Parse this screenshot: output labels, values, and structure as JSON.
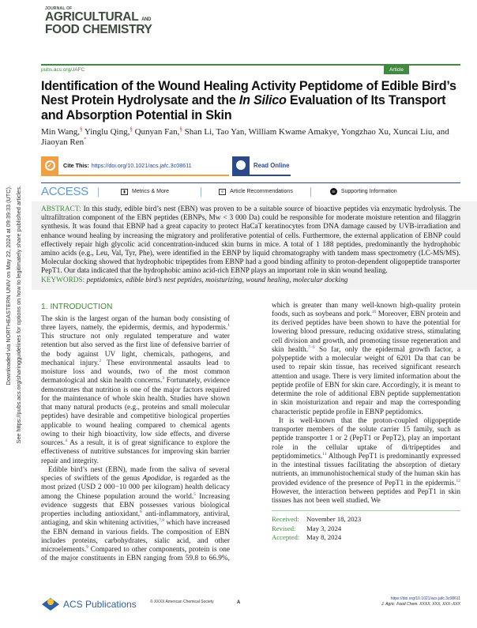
{
  "side_notice": {
    "line1": "Downloaded via NORTHEASTERN UNIV on May 22, 2024 at 09:39:33 (UTC).",
    "line2": "See https://pubs.acs.org/sharingguidelines for options on how to legitimately share published articles."
  },
  "journal": {
    "small": "JOURNAL OF",
    "line1": "AGRICULTURAL",
    "and": "AND",
    "line2": "FOOD CHEMISTRY"
  },
  "header": {
    "url": "pubs.acs.org/JAFC",
    "badge": "Article"
  },
  "title_part1": "Identification of the Wound Healing Activity Peptidome of Edible Bird’s Nest Protein Hydrolysate and the ",
  "title_italic": "In Silico",
  "title_part2": " Evaluation of Its Transport and Absorption Potential in Skin",
  "authors": [
    {
      "name": "Min Wang,",
      "sup": "§"
    },
    {
      "name": " Yinglu Qing,",
      "sup": "§"
    },
    {
      "name": " Qunyan Fan,",
      "sup": "§"
    },
    {
      "name": " Shan Li, Tao Yan, William Kwame Amakye, Yongzhao Xu, Xuncai Liu, and Jiaoyan Ren",
      "sup": "*"
    }
  ],
  "cite": {
    "label": "Cite This:",
    "doi": "https://doi.org/10.1021/acs.jafc.3c08611"
  },
  "read_online": "Read Online",
  "access": {
    "label": "ACCESS",
    "metrics": "Metrics & More",
    "recommendations": "Article Recommendations",
    "supporting": "Supporting Information",
    "si_badge": "SI"
  },
  "abstract": {
    "label": "ABSTRACT:",
    "text": " In this study, edible bird’s nest (EBN) was proven to be a suitable source of bioactive peptides via enzymatic hydrolysis. The ultrafiltration component of the EBN peptides (EBNPs, Mw < 3 000 Da) could be responsible for moderate moisture retention and filaggrin synthesis. It was found that EBNP had a great capacity to protect HaCaT keratinocytes from DNA damage caused by UVB-irradiation and enhance wound healing by increasing the migratory and proliferative potential of cells. Furthermore, the external application of EBNP could effectively repair high glycolic acid concentration-induced skin burns in mice. A total of 1 188 peptides, predominantly the hydrophobic amino acids (e.g., Leu, Val, Tyr, Phe), were identified in the EBNP by liquid chromatography with tandem mass spectrometry (LC-MS/MS). Molecular docking showed that hydrophobic tripeptides from EBNP had a good binding affinity to proton-dependent oligopeptide transporter PepT1. Our data indicated that the hydrophobic amino acid-rich EBNP plays an important role in skin wound healing."
  },
  "keywords": {
    "label": "KEYWORDS:",
    "text": " peptidomics, edible bird’s nest peptides, moisturizing, wound healing, molecular docking"
  },
  "intro": {
    "heading": "1. INTRODUCTION",
    "p1": [
      {
        "t": "The skin is the largest organ of the human body consisting of three layers, namely, the epidermis, dermis, and hypodermis.",
        "s": "1"
      },
      {
        "t": " This structure not only regulated temperature and water retention but also served as the first line of defensive barrier of the body against UV light, chemicals, pathogens, and mechanical injury.",
        "s": "2"
      },
      {
        "t": " These environmental assaults lead to moisture loss and wounds, two of the most common dermatological and skin health concerns.",
        "s": "3"
      },
      {
        "t": " Fortunately, evidence demonstrates that nutrition is one of the major factors required for the maintenance of whole skin health. Studies have shown that many natural products (e.g., proteins and small molecular peptides) have desirable and competitive biological properties applicable to wound healing compared to chemical agents owing to their high bioactivity, low side effects, and diverse sources.",
        "s": "4"
      },
      {
        "t": " As a result, it is of great significance to explore the effectiveness of nutritive substances for improving skin barrier repair and integrity.",
        "s": ""
      }
    ],
    "p2_a": "Edible bird’s nest (EBN), made from the saliva of several species of swiftlets of the genus ",
    "p2_genus": "Apodidae",
    "p2": [
      {
        "t": ", is regarded as the most prized (USD 2 000−10 000 per kilogram) health delicacy among the Chinese population around the world.",
        "s": "5"
      },
      {
        "t": " Increasing evidence suggests that EBN possesses various biological properties including antioxidant,",
        "s": "6"
      },
      {
        "t": " anti-inflammatory, antiviral, antiaging, and skin whitening activities,",
        "s": "7,8"
      },
      {
        "t": " which have increased the EBN demand in various fields. The composition of EBN includes proteins, carbohydrates, sialic acid, and other microelements.",
        "s": "9"
      },
      {
        "t": " Compared to other components, protein is one of the major constituents in EBN ranging from 59.8 to 66.9%, which is greater than many well-known high-quality protein foods, such as soybeans and pork.",
        "s": "10"
      },
      {
        "t": " Moreover, EBN protein and its derived peptides have been shown to have the potential for lowering blood pressure, reducing oxidative stress, stimulating cell division and growth, and promoting tissue regeneration and skin health.",
        "s": "7−9"
      },
      {
        "t": " So far, only the epidermal growth factor, a polypeptide with a molecular weight of 6201 Da that can be used to repair skin tissue, has received significant research attention and usage. There is very limited information about the peptide profile of EBN for skin care. Accordingly, it is meant to determine the role of additional EBN peptide supplementation in skin moisturization and repair and map the corresponding characteristic peptide profile in EBNP peptidomics.",
        "s": ""
      }
    ],
    "p3": [
      {
        "t": "It is well-known that the proton-coupled oligopeptide transporter members of the solute carrier 15 family, such as peptide transporter 1 or 2 (PepT1 or PepT2), play an important role in the cellular uptake of di/tripeptides and peptidomimetics.",
        "s": "11"
      },
      {
        "t": " Although PepT1 is predominantly expressed in the intestinal tissues facilitating the absorption of dietary nutrients, an immunohistochemical study of the human skin has provided evidence of the presence of PepT1 in the epidermis.",
        "s": "12"
      },
      {
        "t": " However, the interaction between peptides and PepT1 in skin tissues has not been well studied. We",
        "s": ""
      }
    ]
  },
  "dates": [
    {
      "k": "Received:",
      "v": "November 18, 2023"
    },
    {
      "k": "Revised:",
      "v": "May 3, 2024"
    },
    {
      "k": "Accepted:",
      "v": "May 8, 2024"
    }
  ],
  "footer": {
    "publisher": "ACS Publications",
    "copyright": "© XXXX American Chemical Society",
    "page": "A",
    "doi": "https://doi.org/10.1021/acs.jafc.3c08611",
    "citation": "J. Agric. Food Chem. XXXX, XXX, XXX−XXX"
  },
  "colors": {
    "green": "#3f8a3f",
    "blue": "#2c4a8a",
    "orange": "#f0a044",
    "access_blue": "#5b9bd5"
  }
}
